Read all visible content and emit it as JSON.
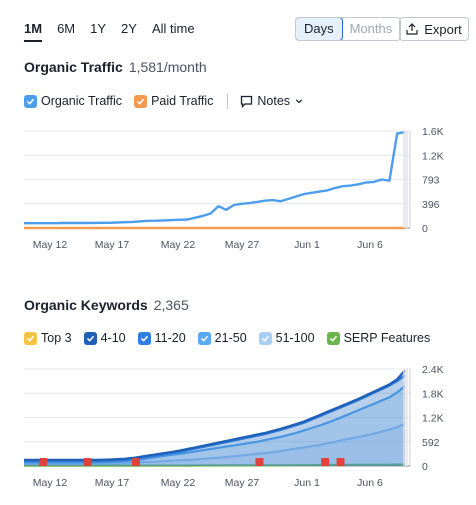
{
  "toolbar": {
    "ranges": [
      "1M",
      "6M",
      "1Y",
      "2Y",
      "All time"
    ],
    "active_range": "1M",
    "granularity": [
      "Days",
      "Months"
    ],
    "active_granularity": "Days",
    "export_label": "Export"
  },
  "traffic": {
    "title": "Organic Traffic",
    "count": "1,581/month",
    "legend": [
      {
        "label": "Organic Traffic",
        "color": "#4d9ded",
        "checked": true
      },
      {
        "label": "Paid Traffic",
        "color": "#f19a54",
        "checked": true
      }
    ],
    "notes_label": "Notes",
    "chart_data": {
      "type": "line",
      "x_ticks": [
        "May 12",
        "May 17",
        "May 22",
        "May 27",
        "Jun 1",
        "Jun 6"
      ],
      "y_ticks": [
        "1.6K",
        "1.2K",
        "793",
        "396",
        "0"
      ],
      "ylim": [
        0,
        1600
      ],
      "series": [
        {
          "name": "Organic Traffic",
          "color": "#4d9ded",
          "values": [
            80,
            80,
            80,
            80,
            80,
            82,
            82,
            82,
            83,
            84,
            85,
            85,
            90,
            95,
            100,
            110,
            118,
            120,
            125,
            130,
            135,
            140,
            170,
            200,
            240,
            360,
            300,
            380,
            400,
            410,
            430,
            450,
            460,
            440,
            480,
            520,
            560,
            580,
            600,
            620,
            660,
            690,
            700,
            720,
            750,
            760,
            800,
            780,
            1560,
            1581
          ]
        },
        {
          "name": "Paid Traffic",
          "color": "#f19a54",
          "values": [
            0,
            0,
            0,
            0,
            0,
            0,
            0,
            0,
            0,
            0,
            0,
            0,
            0,
            0,
            0,
            0,
            0,
            0,
            0,
            0,
            0,
            0,
            0,
            0,
            0,
            0,
            0,
            0,
            0,
            0,
            0,
            0,
            0,
            0,
            0,
            0,
            0,
            0,
            0,
            0,
            0,
            0,
            0,
            0,
            0,
            0,
            0,
            0,
            0,
            0
          ]
        }
      ]
    }
  },
  "keywords": {
    "title": "Organic Keywords",
    "count": "2,365",
    "legend": [
      {
        "label": "Top 3",
        "color": "#f5c342",
        "checked": true
      },
      {
        "label": "4-10",
        "color": "#1f5fb4",
        "checked": true
      },
      {
        "label": "11-20",
        "color": "#2f7fe0",
        "checked": true
      },
      {
        "label": "21-50",
        "color": "#5aa9f0",
        "checked": true
      },
      {
        "label": "51-100",
        "color": "#a8cef5",
        "checked": true
      },
      {
        "label": "SERP Features",
        "color": "#6ab64a",
        "checked": true
      }
    ],
    "chart_data": {
      "type": "area",
      "x_ticks": [
        "May 12",
        "May 17",
        "May 22",
        "May 27",
        "Jun 1",
        "Jun 6"
      ],
      "y_ticks": [
        "2.4K",
        "1.8K",
        "1.2K",
        "592",
        "0"
      ],
      "ylim": [
        0,
        2400
      ],
      "series": [
        {
          "name": "4-10",
          "color": "#1f5fb4",
          "values": [
            150,
            150,
            150,
            150,
            150,
            150,
            150,
            150,
            150,
            150,
            155,
            160,
            170,
            180,
            200,
            230,
            260,
            290,
            320,
            350,
            380,
            420,
            460,
            500,
            540,
            580,
            620,
            660,
            700,
            740,
            780,
            820,
            870,
            920,
            980,
            1040,
            1100,
            1180,
            1260,
            1340,
            1420,
            1500,
            1580,
            1660,
            1750,
            1840,
            1930,
            2020,
            2150,
            2365
          ]
        },
        {
          "name": "11-20",
          "color": "#2f7fe0",
          "values": [
            120,
            120,
            120,
            120,
            120,
            120,
            120,
            120,
            120,
            120,
            125,
            130,
            140,
            150,
            170,
            200,
            230,
            260,
            290,
            320,
            350,
            390,
            430,
            470,
            510,
            550,
            590,
            630,
            670,
            710,
            750,
            790,
            840,
            890,
            950,
            1010,
            1070,
            1150,
            1230,
            1310,
            1390,
            1470,
            1550,
            1630,
            1720,
            1810,
            1900,
            1990,
            2100,
            2250
          ]
        },
        {
          "name": "21-50",
          "color": "#5aa9f0",
          "values": [
            90,
            90,
            90,
            90,
            90,
            90,
            90,
            90,
            90,
            90,
            95,
            100,
            110,
            120,
            140,
            160,
            190,
            220,
            250,
            280,
            300,
            330,
            360,
            390,
            420,
            450,
            480,
            510,
            540,
            570,
            600,
            640,
            680,
            720,
            770,
            820,
            880,
            940,
            1000,
            1070,
            1140,
            1220,
            1300,
            1380,
            1460,
            1540,
            1620,
            1700,
            1820,
            1980
          ]
        },
        {
          "name": "51-100",
          "color": "#a8cef5",
          "values": [
            60,
            60,
            60,
            60,
            60,
            60,
            60,
            60,
            60,
            60,
            62,
            64,
            68,
            72,
            80,
            90,
            100,
            110,
            120,
            130,
            140,
            150,
            160,
            175,
            190,
            205,
            220,
            240,
            260,
            280,
            300,
            320,
            345,
            370,
            400,
            430,
            460,
            490,
            520,
            560,
            600,
            640,
            680,
            720,
            760,
            800,
            850,
            900,
            960,
            1050
          ]
        },
        {
          "name": "SERP Features",
          "color": "#6ab64a",
          "values": [
            10,
            10,
            10,
            10,
            10,
            10,
            10,
            10,
            10,
            10,
            10,
            10,
            10,
            10,
            10,
            10,
            10,
            10,
            10,
            10,
            10,
            10,
            12,
            12,
            12,
            12,
            14,
            14,
            14,
            14,
            16,
            16,
            16,
            18,
            18,
            20,
            20,
            22,
            22,
            24,
            24,
            26,
            26,
            28,
            28,
            30,
            30,
            32,
            34,
            36
          ]
        }
      ],
      "flag_positions": [
        0.05,
        0.165,
        0.29,
        0.61,
        0.78,
        0.82
      ]
    }
  }
}
